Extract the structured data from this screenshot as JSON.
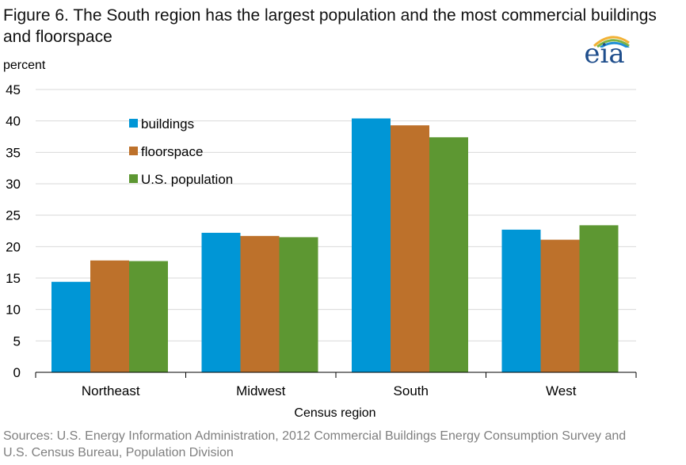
{
  "title": "Figure 6. The South region has the largest population and the most commercial buildings and floorspace",
  "logo_text": "eia",
  "source": "Sources: U.S. Energy Information Administration,  2012 Commercial Buildings Energy Consumption Survey and U.S. Census Bureau, Population Division",
  "colors": {
    "buildings": "#0096d6",
    "floorspace": "#bd712b",
    "population": "#5d9732",
    "grid": "#d9d9d9",
    "axis": "#000000"
  },
  "chart_data": {
    "type": "bar",
    "title": "Figure 6. The South region has the largest population and the most commercial buildings and floorspace",
    "ylabel": "percent",
    "xlabel": "Census region",
    "ylim": [
      0,
      45
    ],
    "yticks": [
      0,
      5,
      10,
      15,
      20,
      25,
      30,
      35,
      40,
      45
    ],
    "categories": [
      "Northeast",
      "Midwest",
      "South",
      "West"
    ],
    "series": [
      {
        "name": "buildings",
        "values": [
          14.4,
          22.2,
          40.4,
          22.7
        ]
      },
      {
        "name": "floorspace",
        "values": [
          17.8,
          21.7,
          39.3,
          21.1
        ]
      },
      {
        "name": "U.S. population",
        "values": [
          17.7,
          21.5,
          37.4,
          23.4
        ]
      }
    ],
    "grid": true,
    "legend_position": "top-left"
  }
}
